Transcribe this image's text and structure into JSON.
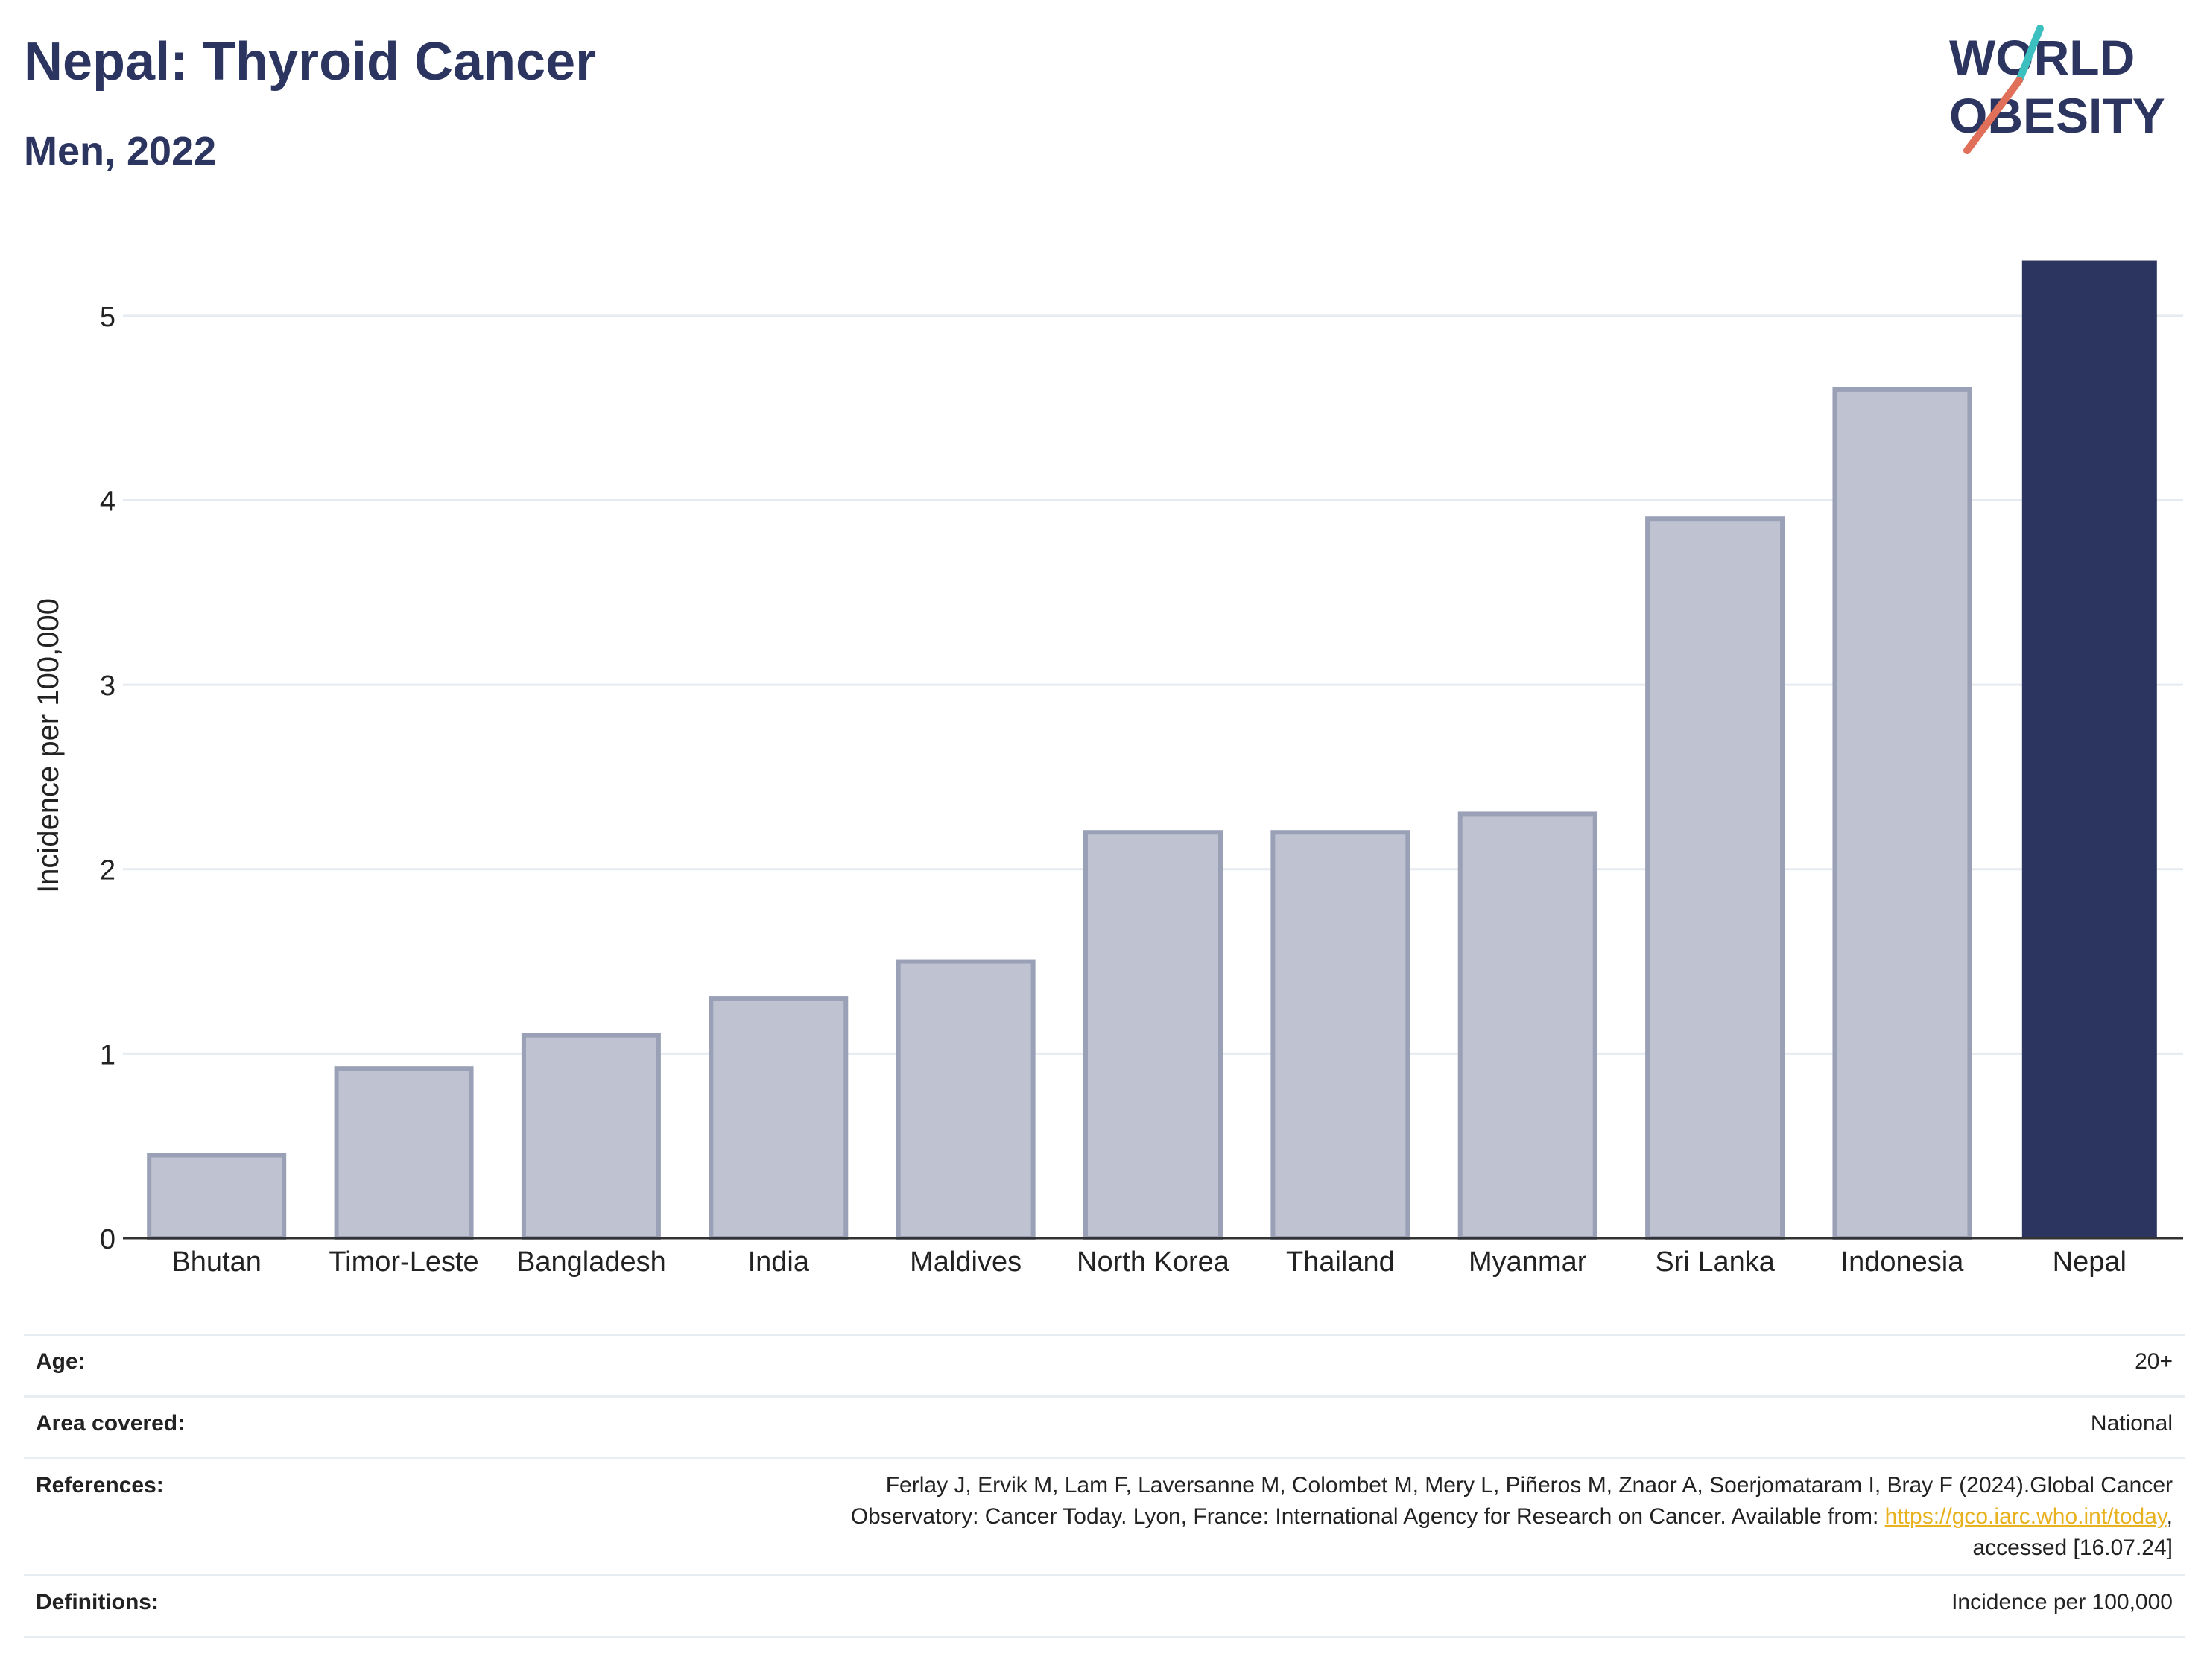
{
  "header": {
    "title": "Nepal: Thyroid Cancer",
    "subtitle": "Men, 2022"
  },
  "logo": {
    "line1": "WORLD",
    "line2": "OBESITY"
  },
  "chart_data": {
    "type": "bar",
    "categories": [
      "Bhutan",
      "Timor-Leste",
      "Bangladesh",
      "India",
      "Maldives",
      "North Korea",
      "Thailand",
      "Myanmar",
      "Sri Lanka",
      "Indonesia",
      "Nepal"
    ],
    "values": [
      0.45,
      0.92,
      1.1,
      1.3,
      1.5,
      2.2,
      2.2,
      2.3,
      3.9,
      4.6,
      5.3
    ],
    "highlight": "Nepal",
    "ylabel": "Incidence per 100,000",
    "ylim": [
      0,
      5.5
    ],
    "yticks": [
      0,
      1,
      2,
      3,
      4,
      5
    ],
    "grid": true,
    "colors": {
      "bar": "#bfc3d1",
      "bar_edge": "#9aa0b6",
      "highlight": "#2b3560"
    }
  },
  "info": {
    "age_label": "Age:",
    "age_value": "20+",
    "area_label": "Area covered:",
    "area_value": "National",
    "references_label": "References:",
    "references_text_1": "Ferlay J, Ervik M, Lam F, Laversanne M, Colombet M, Mery L, Piñeros M, Znaor A, Soerjomataram I, Bray F (2024).Global Cancer",
    "references_text_2": "Observatory: Cancer Today. Lyon, France: International Agency for Research on Cancer. Available from: ",
    "references_link": "https://gco.iarc.who.int/today",
    "references_text_3": ",",
    "references_text_4": "accessed [16.07.24]",
    "definitions_label": "Definitions:",
    "definitions_value": "Incidence per 100,000"
  }
}
